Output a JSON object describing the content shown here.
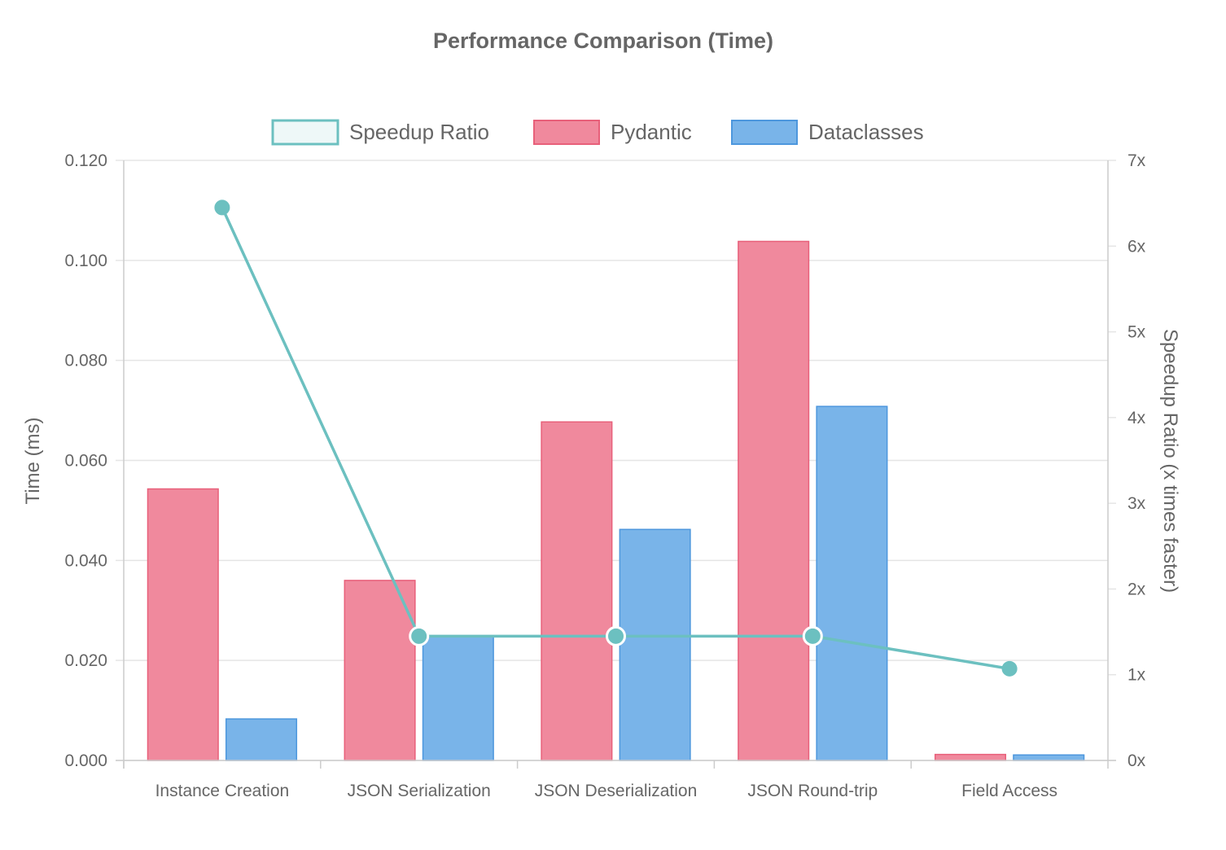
{
  "chart_data": {
    "type": "bar",
    "title": "Performance Comparison (Time)",
    "categories": [
      "Instance Creation",
      "JSON Serialization",
      "JSON Deserialization",
      "JSON Round-trip",
      "Field Access"
    ],
    "series": [
      {
        "name": "Pydantic",
        "type": "bar",
        "axis": "left",
        "values": [
          0.0543,
          0.036,
          0.0677,
          0.1038,
          0.0012
        ],
        "color": "#f0899d",
        "border": "#e8607a"
      },
      {
        "name": "Dataclasses",
        "type": "bar",
        "axis": "left",
        "values": [
          0.0083,
          0.0248,
          0.0462,
          0.0708,
          0.0011
        ],
        "color": "#79b4e9",
        "border": "#4d97dd"
      },
      {
        "name": "Speedup Ratio",
        "type": "line",
        "axis": "right",
        "values": [
          6.45,
          1.45,
          1.45,
          1.45,
          1.07
        ],
        "color": "#6cc0c0"
      }
    ],
    "legend_order": [
      "Speedup Ratio",
      "Pydantic",
      "Dataclasses"
    ],
    "legend_position": "top",
    "y_left": {
      "label": "Time (ms)",
      "ylim": [
        0,
        0.12
      ],
      "ticks": [
        "0.120",
        "0.100",
        "0.080",
        "0.060",
        "0.040",
        "0.020",
        "0.000"
      ]
    },
    "y_right": {
      "label": "Speedup Ratio (x times faster)",
      "ylim": [
        0,
        7
      ],
      "ticks": [
        "7x",
        "6x",
        "5x",
        "4x",
        "3x",
        "2x",
        "1x",
        "0x"
      ]
    },
    "grid": true
  }
}
